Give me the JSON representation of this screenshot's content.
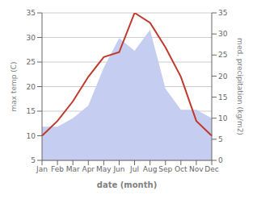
{
  "chart_data": {
    "type": "combo",
    "xlabel": "date (month)",
    "ylabel": "max temp (C)",
    "y2label": "med. precipitation (kg/m2)",
    "categories": [
      "Jan",
      "Feb",
      "Mar",
      "Apr",
      "May",
      "Jun",
      "Jul",
      "Aug",
      "Sep",
      "Oct",
      "Nov",
      "Dec"
    ],
    "series": [
      {
        "type": "area",
        "color": "#c5cdf0",
        "axis": "y2",
        "values": [
          8,
          8,
          10,
          13,
          22,
          29,
          26,
          31,
          17,
          12,
          12,
          10
        ]
      },
      {
        "type": "line",
        "color": "#c0392b",
        "values": [
          10,
          13,
          17,
          22,
          26,
          27,
          35,
          33,
          28,
          22,
          13,
          10
        ]
      }
    ],
    "ylim": [
      5,
      35
    ],
    "yticks": [
      5,
      10,
      15,
      20,
      25,
      30,
      35
    ],
    "y2lim": [
      0,
      35
    ],
    "y2ticks": [
      0,
      5,
      10,
      15,
      20,
      25,
      30,
      35
    ],
    "grid": true
  }
}
